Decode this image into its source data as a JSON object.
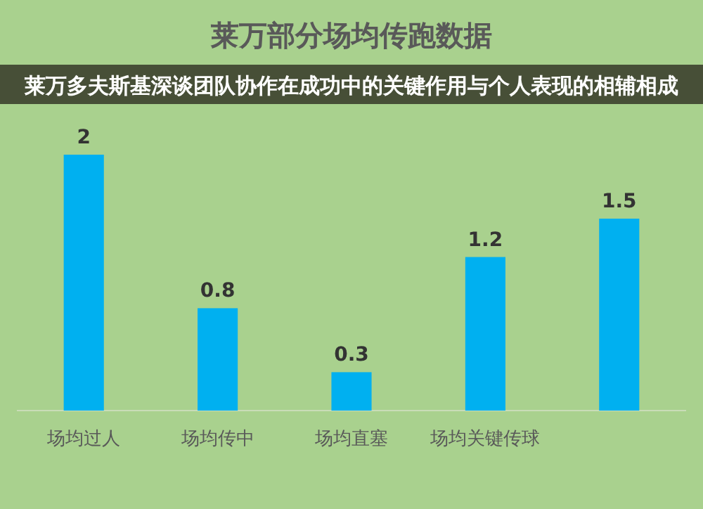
{
  "chart_data": {
    "type": "bar",
    "title": "莱万部分场均传跑数据",
    "annotations": [
      "莱万多夫斯基深谈团队协作在成功中的关键作用与个人表现的相辅相成"
    ],
    "categories": [
      "场均过人",
      "场均传中",
      "场均直塞",
      "场均关键传球",
      null
    ],
    "values": [
      2,
      0.8,
      0.3,
      1.2,
      1.5
    ],
    "color": "#00b0f0",
    "data_labels": true
  }
}
